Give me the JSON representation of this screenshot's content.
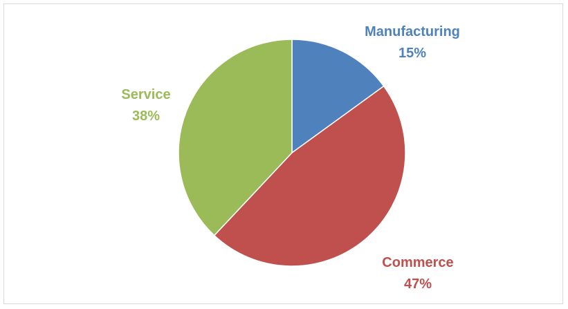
{
  "chart_data": {
    "type": "pie",
    "slices": [
      {
        "label": "Manufacturing",
        "value": 15,
        "percent_text": "15%",
        "color": "#4f81bd"
      },
      {
        "label": "Commerce",
        "value": 47,
        "percent_text": "47%",
        "color": "#c0504d"
      },
      {
        "label": "Service",
        "value": 38,
        "percent_text": "38%",
        "color": "#9bbb59"
      }
    ],
    "start_angle_deg": 0,
    "direction": "clockwise",
    "data_labels": "category-name-and-percent",
    "legend": "none",
    "title": ""
  }
}
